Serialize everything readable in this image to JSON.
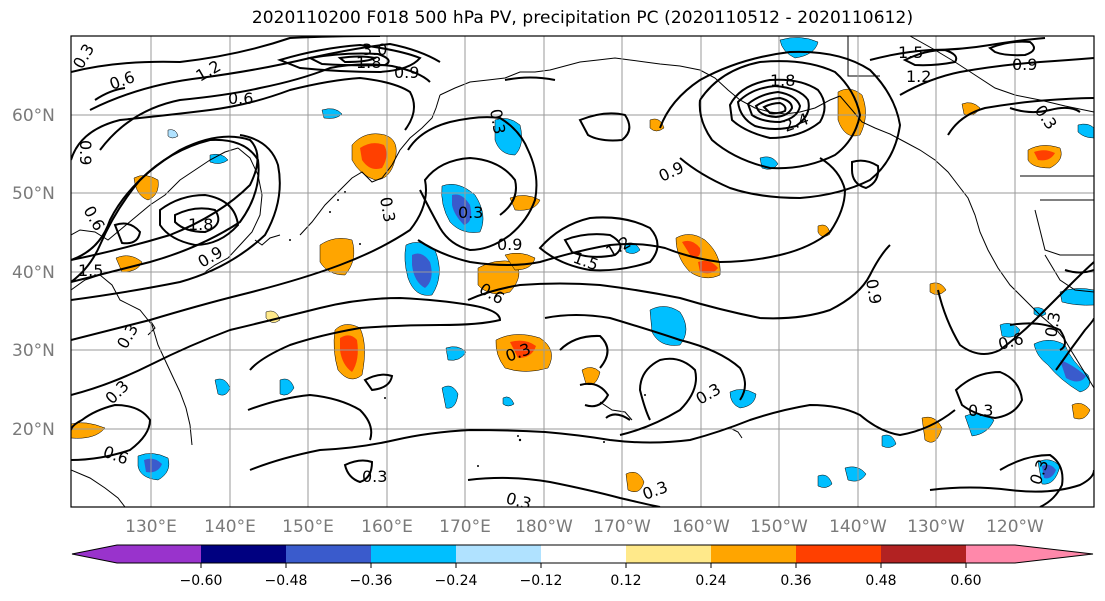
{
  "title": "2020110200 F018 500 hPa PV, precipitation PC (2020110512 - 2020110612)",
  "latitude_labels": [
    "60°N",
    "50°N",
    "40°N",
    "30°N",
    "20°N"
  ],
  "longitude_labels": [
    "130°E",
    "140°E",
    "150°E",
    "160°E",
    "170°E",
    "180°W",
    "170°W",
    "160°W",
    "150°W",
    "140°W",
    "130°W",
    "120°W"
  ],
  "contour_labels": [
    "0.3",
    "0.6",
    "1.2",
    "0.6",
    "3.0",
    "1.8",
    "0.9",
    "0.3",
    "1.5",
    "1.2",
    "0.9",
    "1.8",
    "2.4",
    "0.9",
    "0.3",
    "0.9",
    "0.6",
    "1.8",
    "0.9",
    "1.5",
    "0.3",
    "0.9",
    "1.5",
    "1.2",
    "0.6",
    "0.9",
    "0.3",
    "0.3",
    "0.3",
    "0.6",
    "0.3",
    "0.3",
    "0.3",
    "0.3",
    "0.3",
    "0.3",
    "0.6",
    "0.3"
  ],
  "colorbar": {
    "ticks": [
      "−0.60",
      "−0.48",
      "−0.36",
      "−0.24",
      "−0.12",
      "0.12",
      "0.24",
      "0.36",
      "0.48",
      "0.60"
    ],
    "colors": [
      "#9933cc",
      "#000080",
      "#3a5bcc",
      "#00bfff",
      "#b0e2ff",
      "#ffffff",
      "#ffe98a",
      "#ffa500",
      "#ff4000",
      "#b22222",
      "#ff88aa"
    ]
  }
}
